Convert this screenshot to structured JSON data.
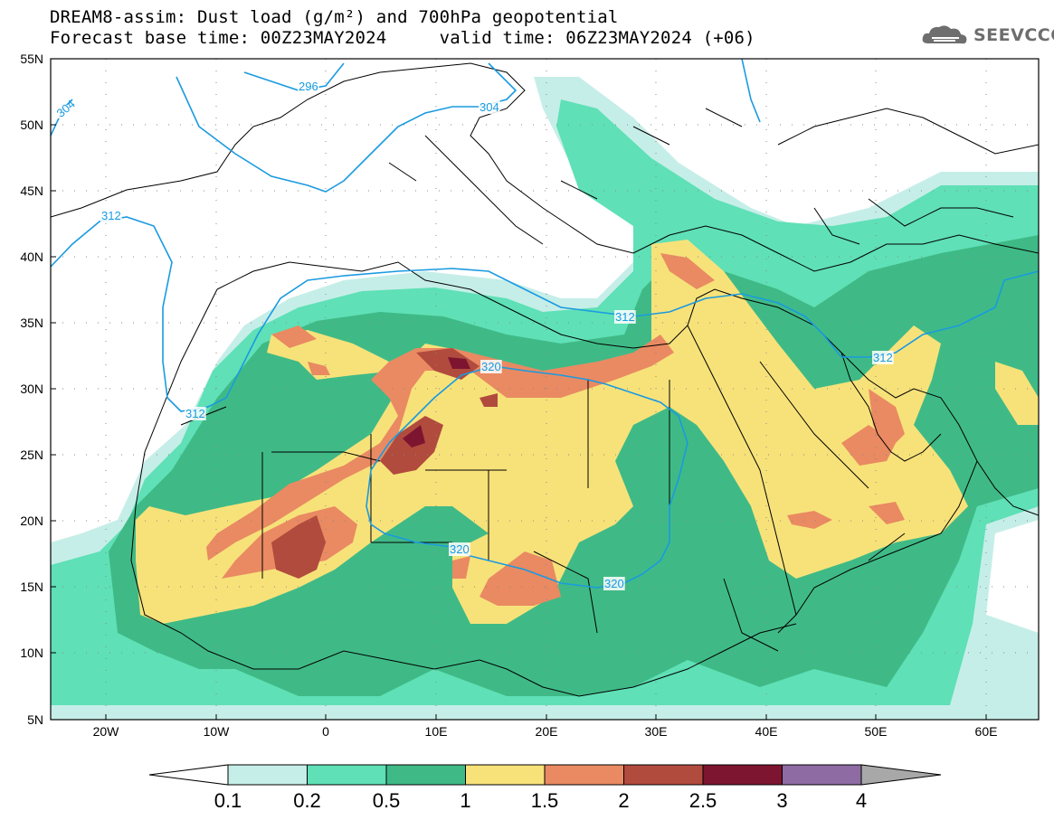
{
  "title_line1": "DREAM8-assim: Dust load (g/m²) and 700hPa geopotential",
  "title_line2": "Forecast base time: 00Z23MAY2024     valid time: 06Z23MAY2024 (+06)",
  "logo_text": "SEEVCCC",
  "lat_labels": [
    "55N",
    "50N",
    "45N",
    "40N",
    "35N",
    "30N",
    "25N",
    "20N",
    "15N",
    "10N",
    "5N"
  ],
  "lon_labels": [
    "20W",
    "10W",
    "0",
    "10E",
    "20E",
    "30E",
    "40E",
    "50E",
    "60E"
  ],
  "contour_labels": [
    "296",
    "304",
    "304",
    "312",
    "312",
    "312",
    "312",
    "320",
    "320",
    "320"
  ],
  "colorbar": {
    "levels": [
      "0.1",
      "0.2",
      "0.5",
      "1",
      "1.5",
      "2",
      "2.5",
      "3",
      "4"
    ],
    "colors": [
      "#ffffff",
      "#c6eee8",
      "#5fe0b6",
      "#3fba86",
      "#f7e27a",
      "#e98a62",
      "#b14b3d",
      "#7d1530",
      "#8e6ba3",
      "#a8a8a8"
    ]
  },
  "dust_colors": {
    "c01": "#c6eee8",
    "c02": "#5fe0b6",
    "c05": "#3fba86",
    "c1": "#f7e27a",
    "c15": "#e98a62",
    "c2": "#b14b3d",
    "c25": "#7d1530"
  },
  "contour_color": "#1a9ae0"
}
